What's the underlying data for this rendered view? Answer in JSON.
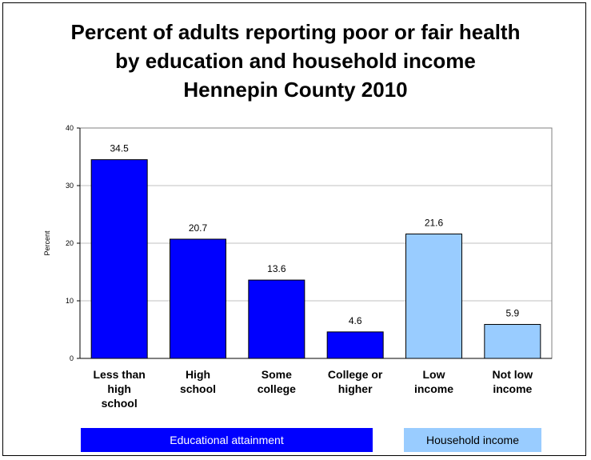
{
  "title_lines": [
    "Percent of adults reporting poor or fair health",
    "by education and household income",
    "Hennepin County 2010"
  ],
  "colors": {
    "education": "#0000ff",
    "income": "#99ccff"
  },
  "groups": {
    "education": "Educational attainment",
    "income": "Household income"
  },
  "chart_data": {
    "type": "bar",
    "title": "Percent of adults reporting poor or fair health by education and household income Hennepin County 2010",
    "ylabel": "Percent",
    "ylim": [
      0,
      40
    ],
    "yticks": [
      0,
      10,
      20,
      30,
      40
    ],
    "grid": true,
    "categories": [
      [
        "Less than",
        "high",
        "school"
      ],
      [
        "High",
        "school"
      ],
      [
        "Some",
        "college"
      ],
      [
        "College or",
        "higher"
      ],
      [
        "Low",
        "income"
      ],
      [
        "Not low",
        "income"
      ]
    ],
    "values": [
      34.5,
      20.7,
      13.6,
      4.6,
      21.6,
      5.9
    ],
    "value_labels": [
      "34.5",
      "20.7",
      "13.6",
      "4.6",
      "21.6",
      "5.9"
    ],
    "bar_group": [
      "education",
      "education",
      "education",
      "education",
      "income",
      "income"
    ]
  }
}
